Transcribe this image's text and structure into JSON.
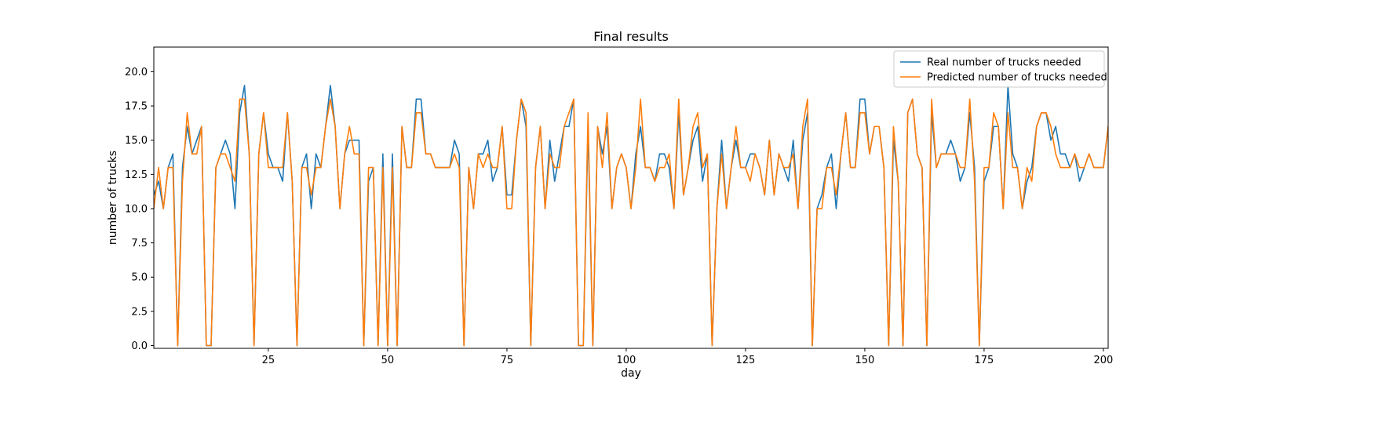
{
  "chart_data": {
    "type": "line",
    "title": "Final results",
    "xlabel": "day",
    "ylabel": "number of trucks",
    "xlim": [
      1,
      201
    ],
    "ylim": [
      -0.2,
      21.8
    ],
    "x_ticks": [
      25,
      50,
      75,
      100,
      125,
      150,
      175,
      200
    ],
    "x_tick_labels": [
      "25",
      "50",
      "75",
      "100",
      "125",
      "150",
      "175",
      "200"
    ],
    "y_ticks": [
      0.0,
      2.5,
      5.0,
      7.5,
      10.0,
      12.5,
      15.0,
      17.5,
      20.0
    ],
    "y_tick_labels": [
      "0.0",
      "2.5",
      "5.0",
      "7.5",
      "10.0",
      "12.5",
      "15.0",
      "17.5",
      "20.0"
    ],
    "grid": false,
    "legend_position": "top-right",
    "x_start": 1,
    "series": [
      {
        "name": "Real number of trucks needed",
        "color": "#1f77b4",
        "values": [
          11,
          12,
          10,
          13,
          14,
          0,
          13,
          16,
          14,
          15,
          16,
          0,
          0,
          13,
          14,
          15,
          14,
          10,
          17,
          19,
          14,
          0,
          14,
          17,
          14,
          13,
          13,
          12,
          17,
          12,
          0,
          13,
          14,
          10,
          14,
          13,
          16,
          19,
          16,
          10,
          14,
          15,
          15,
          15,
          0,
          12,
          13,
          0,
          14,
          0,
          14,
          0,
          16,
          13,
          13,
          18,
          18,
          14,
          14,
          13,
          13,
          13,
          13,
          15,
          14,
          0,
          13,
          10,
          14,
          14,
          15,
          12,
          13,
          16,
          11,
          11,
          15,
          18,
          16,
          0,
          13,
          16,
          10,
          15,
          12,
          14,
          16,
          16,
          18,
          0,
          0,
          16,
          0,
          16,
          14,
          16,
          10,
          13,
          14,
          13,
          10,
          14,
          16,
          13,
          13,
          12,
          14,
          14,
          13,
          10,
          17,
          11,
          13,
          15,
          16,
          12,
          14,
          0,
          10,
          15,
          10,
          13,
          15,
          13,
          13,
          14,
          14,
          13,
          11,
          15,
          11,
          14,
          13,
          12,
          15,
          10,
          15,
          17,
          0,
          10,
          11,
          13,
          14,
          10,
          14,
          17,
          13,
          13,
          18,
          18,
          14,
          16,
          16,
          13,
          0,
          15,
          12,
          0,
          17,
          18,
          14,
          13,
          0,
          17,
          13,
          14,
          14,
          15,
          14,
          12,
          13,
          17,
          13,
          0,
          12,
          13,
          16,
          16,
          10,
          19,
          14,
          13,
          10,
          12,
          13,
          16,
          17,
          17,
          15,
          16,
          14,
          14,
          13,
          14,
          12,
          13,
          14,
          13,
          13,
          13,
          16,
          17
        ],
        "values_count_note": ""
      },
      {
        "name": "Predicted number of trucks needed",
        "color": "#ff7f0e",
        "values": [
          10,
          13,
          10,
          13,
          13,
          0,
          12,
          17,
          14,
          14,
          16,
          0,
          0,
          13,
          14,
          14,
          13,
          12,
          18,
          18,
          14,
          0,
          14,
          17,
          13,
          13,
          13,
          13,
          17,
          12,
          0,
          13,
          13,
          11,
          13,
          13,
          16,
          18,
          16,
          10,
          14,
          16,
          14,
          14,
          0,
          13,
          13,
          0,
          13,
          0,
          13,
          0,
          16,
          13,
          13,
          17,
          17,
          14,
          14,
          13,
          13,
          13,
          13,
          14,
          13,
          0,
          13,
          10,
          14,
          13,
          14,
          13,
          13,
          16,
          10,
          10,
          15,
          18,
          17,
          0,
          13,
          16,
          10,
          14,
          13,
          13,
          16,
          17,
          18,
          0,
          0,
          17,
          0,
          16,
          13,
          17,
          10,
          13,
          14,
          13,
          10,
          13,
          18,
          13,
          13,
          12,
          13,
          13,
          14,
          10,
          18,
          11,
          13,
          16,
          17,
          13,
          14,
          0,
          10,
          14,
          10,
          13,
          16,
          13,
          13,
          12,
          14,
          13,
          11,
          15,
          11,
          14,
          13,
          13,
          14,
          10,
          16,
          18,
          0,
          10,
          10,
          13,
          13,
          11,
          14,
          17,
          13,
          13,
          17,
          17,
          14,
          16,
          16,
          13,
          0,
          16,
          12,
          0,
          17,
          18,
          14,
          13,
          0,
          18,
          13,
          14,
          14,
          14,
          14,
          13,
          13,
          18,
          12,
          0,
          13,
          13,
          17,
          16,
          10,
          17,
          13,
          13,
          10,
          13,
          12,
          16,
          17,
          17,
          16,
          14,
          13,
          13,
          13,
          14,
          13,
          13,
          14,
          13,
          13,
          13,
          16,
          17
        ]
      }
    ]
  }
}
